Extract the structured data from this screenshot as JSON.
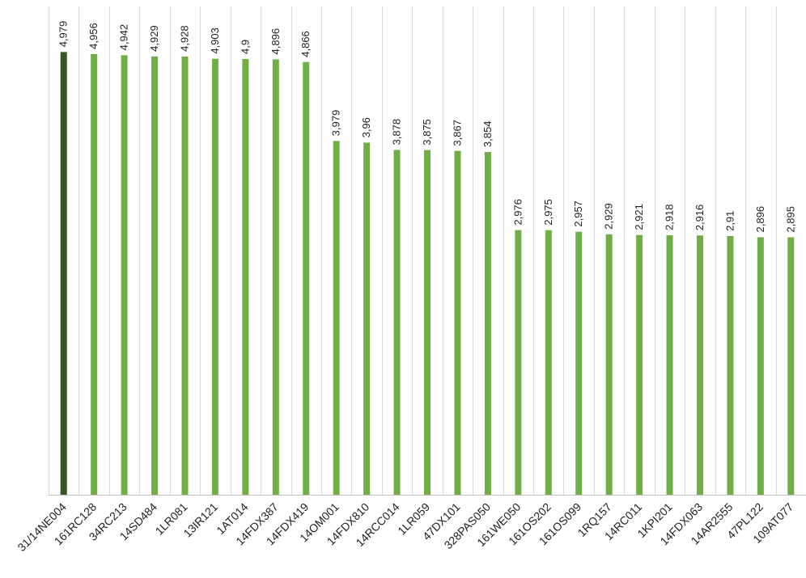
{
  "chart_data": {
    "type": "bar",
    "categories": [
      "31/14NE004",
      "161RC128",
      "34RC213",
      "14SD484",
      "1LR081",
      "13IR121",
      "1AT014",
      "14FDX387",
      "14FDX419",
      "14OM001",
      "14FDX810",
      "14RCC014",
      "1LR059",
      "47DX101",
      "328PAS050",
      "161WE050",
      "161OS202",
      "161OS099",
      "1RQ157",
      "14RC011",
      "1KPI201",
      "14FDX063",
      "14AR2555",
      "47PL122",
      "109AT077"
    ],
    "values": [
      4.979,
      4.956,
      4.942,
      4.929,
      4.928,
      4.903,
      4.9,
      4.896,
      4.866,
      3.979,
      3.96,
      3.878,
      3.875,
      3.867,
      3.854,
      2.976,
      2.975,
      2.957,
      2.929,
      2.921,
      2.918,
      2.916,
      2.91,
      2.896,
      2.895
    ],
    "value_labels": [
      "4,979",
      "4,956",
      "4,942",
      "4,929",
      "4,928",
      "4,903",
      "4,9",
      "4,896",
      "4,866",
      "3,979",
      "3,96",
      "3,878",
      "3,875",
      "3,867",
      "3,854",
      "2,976",
      "2,975",
      "2,957",
      "2,929",
      "2,921",
      "2,918",
      "2,916",
      "2,91",
      "2,896",
      "2,895"
    ],
    "ylim": [
      0,
      5.5
    ],
    "grid": true,
    "colors": {
      "highlight": "#375623",
      "bar": "#70ad47",
      "grid": "#d9d9d9"
    },
    "highlight_index": 0
  }
}
